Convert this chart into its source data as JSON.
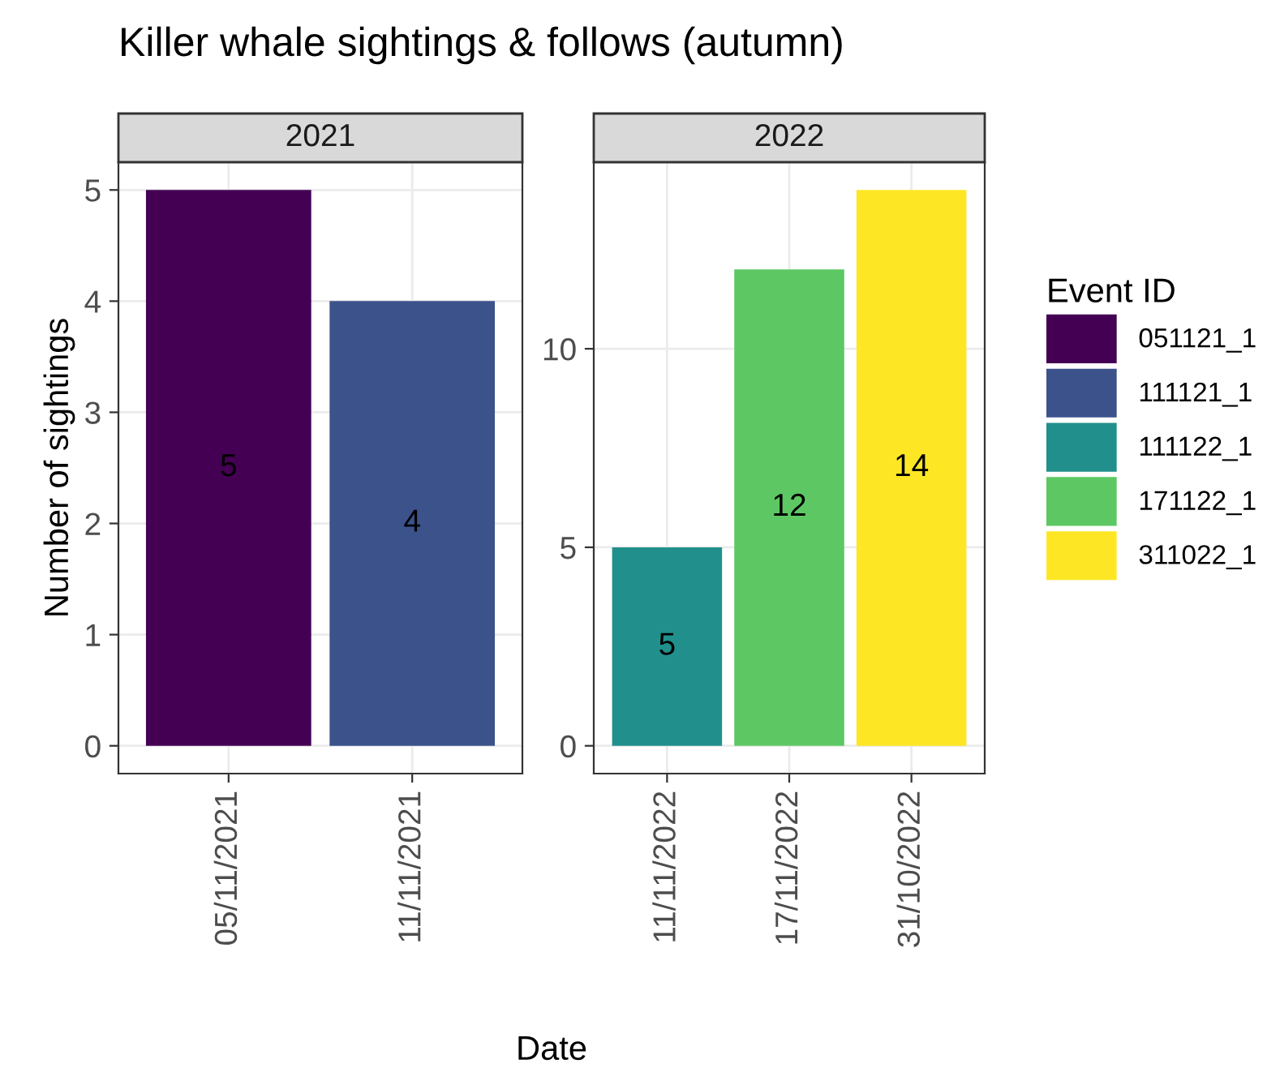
{
  "chart_data": [
    {
      "type": "bar",
      "title": "Killer whale sightings & follows (autumn)",
      "subtitle": "2021",
      "ylabel": "Number of sightings",
      "categories": [
        "05/11/2021",
        "11/11/2021"
      ],
      "series": [
        {
          "name": "051121_1",
          "color": "#440154",
          "values": [
            5,
            null
          ]
        },
        {
          "name": "111121_1",
          "color": "#3b528b",
          "values": [
            null,
            4
          ]
        }
      ],
      "ylim": [
        -0.25,
        5.25
      ],
      "yticks": [
        0,
        1,
        2,
        3,
        4,
        5
      ],
      "data_labels": true,
      "grid": true,
      "legend": "right"
    },
    {
      "type": "bar",
      "subtitle": "2022",
      "xlabel": "Date",
      "legend_title": "Event ID",
      "categories": [
        "11/11/2022",
        "17/11/2022",
        "31/10/2022"
      ],
      "series": [
        {
          "name": "111122_1",
          "color": "#21908c",
          "values": [
            5,
            null,
            null
          ]
        },
        {
          "name": "171122_1",
          "color": "#5dc863",
          "values": [
            null,
            12,
            null
          ]
        },
        {
          "name": "311022_1",
          "color": "#fde725",
          "values": [
            null,
            null,
            14
          ]
        }
      ],
      "ylim": [
        -0.7,
        14.7
      ],
      "yticks": [
        0,
        5,
        10
      ],
      "data_labels": true,
      "grid": true,
      "legend": "right"
    }
  ]
}
